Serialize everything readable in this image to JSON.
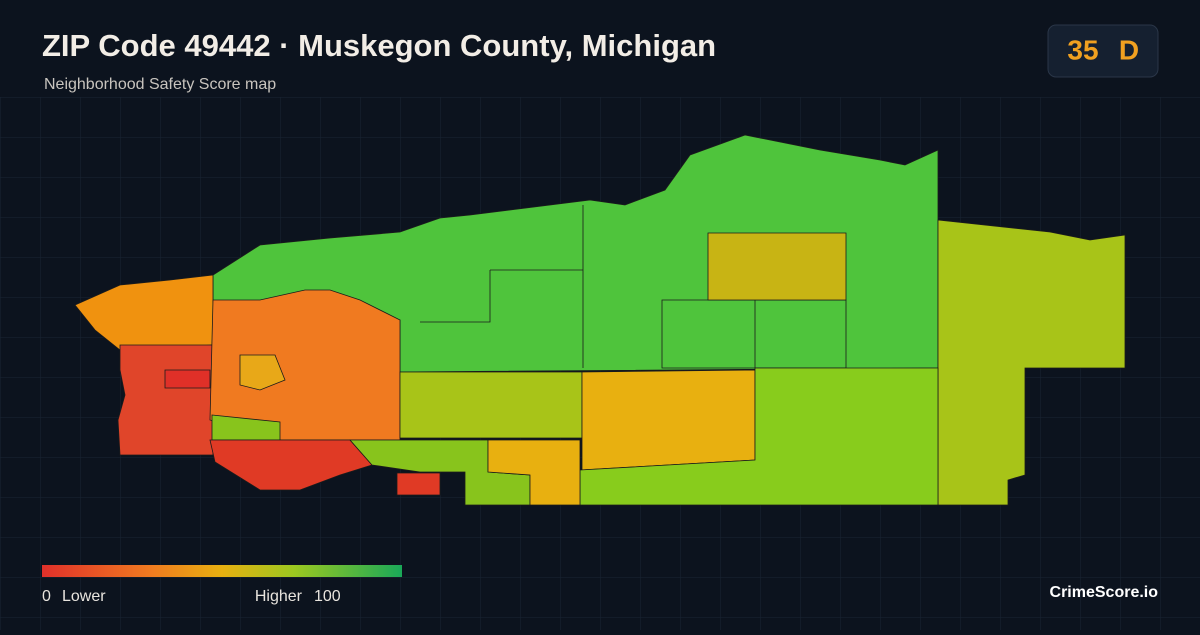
{
  "header": {
    "title": "ZIP Code 49442 · Muskegon County, Michigan",
    "subtitle": "Neighborhood Safety Score map"
  },
  "score": {
    "value": 35,
    "grade": "D"
  },
  "legend": {
    "min": 0,
    "min_label": "Lower",
    "max_label": "Higher",
    "max": 100
  },
  "brand": "CrimeScore.io"
}
